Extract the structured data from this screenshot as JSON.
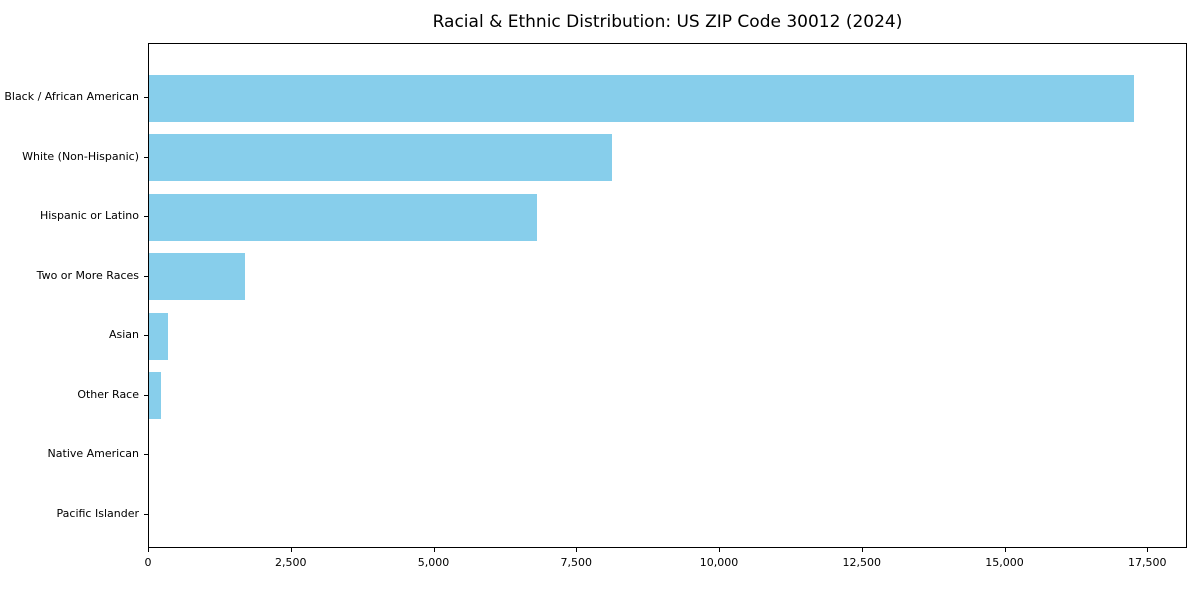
{
  "figure": {
    "background": "#ffffff",
    "axis_color": "#000000",
    "text_color": "#000000"
  },
  "chart_data": {
    "type": "bar",
    "orientation": "horizontal",
    "title": "Racial & Ethnic Distribution: US ZIP Code 30012 (2024)",
    "categories": [
      "Black / African American",
      "White (Non-Hispanic)",
      "Hispanic or Latino",
      "Two or More Races",
      "Asian",
      "Other Race",
      "Native American",
      "Pacific Islander"
    ],
    "values": [
      17250,
      8100,
      6800,
      1680,
      330,
      210,
      0,
      0
    ],
    "bar_color": "#87ceeb",
    "xlabel": "",
    "ylabel": "",
    "xlim": [
      0,
      18160
    ],
    "x_ticks": [
      0,
      2500,
      5000,
      7500,
      10000,
      12500,
      15000,
      17500
    ],
    "x_tick_labels": [
      "0",
      "2,500",
      "5,000",
      "7,500",
      "10,000",
      "12,500",
      "15,000",
      "17,500"
    ],
    "grid": false,
    "legend": null
  }
}
